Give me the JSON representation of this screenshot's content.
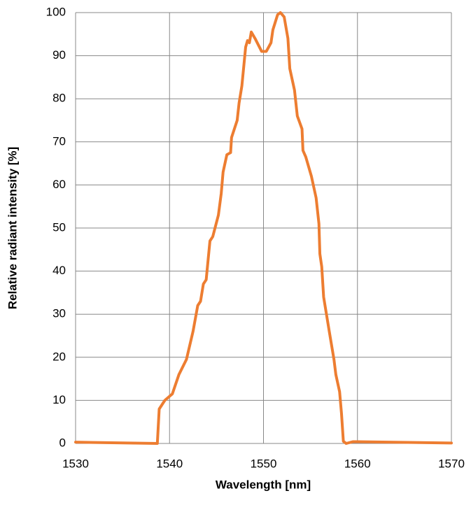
{
  "chart_data": {
    "type": "line",
    "xlabel": "Wavelength [nm]",
    "ylabel": "Relative radiant intensity [%]",
    "x": [
      1530,
      1538.7,
      1538.9,
      1539.5,
      1540.3,
      1541,
      1541.8,
      1542.5,
      1543,
      1543.3,
      1543.6,
      1543.9,
      1544.3,
      1544.6,
      1545.2,
      1545.5,
      1545.7,
      1546.1,
      1546.5,
      1546.6,
      1547.2,
      1547.4,
      1547.7,
      1548.1,
      1548.3,
      1548.5,
      1548.7,
      1549.1,
      1549.8,
      1550.3,
      1550.8,
      1551,
      1551.5,
      1551.8,
      1552.2,
      1552.6,
      1552.8,
      1553.3,
      1553.6,
      1554.1,
      1554.2,
      1554.5,
      1555.1,
      1555.6,
      1555.9,
      1556,
      1556.2,
      1556.4,
      1557,
      1557.5,
      1557.7,
      1558.1,
      1558.3,
      1558.5,
      1558.8,
      1559.5,
      1560,
      1570
    ],
    "series": [
      {
        "color": "#ed7d31",
        "values": [
          0.3,
          0,
          8,
          10,
          11.5,
          16,
          19.5,
          26,
          32,
          33,
          37,
          38,
          47,
          48,
          53,
          58,
          63,
          67,
          67.5,
          71,
          75,
          79,
          83,
          92,
          93.5,
          93,
          95.5,
          94,
          91,
          91,
          93,
          96,
          99.5,
          100,
          99,
          94,
          87,
          82,
          76,
          73,
          68,
          66.5,
          62,
          57,
          51,
          44,
          41,
          34,
          26,
          19.5,
          16,
          12,
          7,
          0.5,
          0,
          0.4,
          0.4,
          0.1
        ]
      }
    ],
    "xlim": [
      1530,
      1570
    ],
    "xticks": [
      1530,
      1540,
      1550,
      1560,
      1570
    ],
    "ylim": [
      0,
      100
    ],
    "yticks": [
      0,
      10,
      20,
      30,
      40,
      50,
      60,
      70,
      80,
      90,
      100
    ],
    "grid": true
  }
}
